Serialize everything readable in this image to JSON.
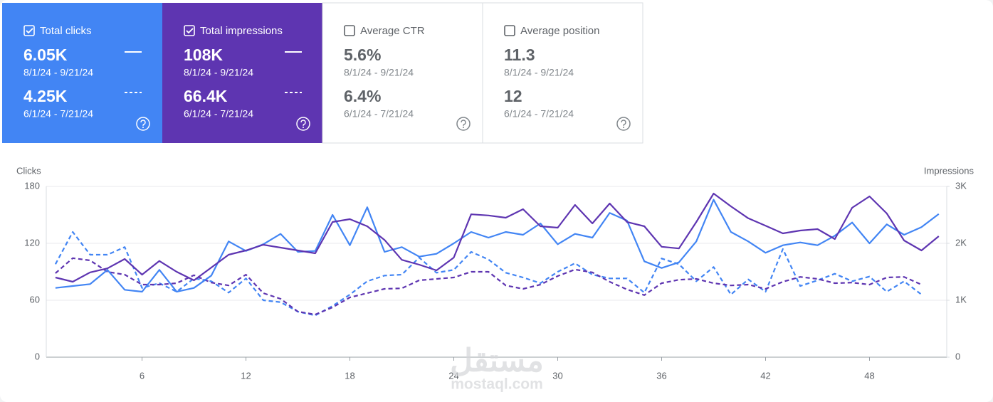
{
  "cards": [
    {
      "title": "Total clicks",
      "checked": true,
      "color": "#4285f4",
      "current": {
        "value": "6.05K",
        "range": "8/1/24 - 9/21/24"
      },
      "previous": {
        "value": "4.25K",
        "range": "6/1/24 - 7/21/24"
      }
    },
    {
      "title": "Total impressions",
      "checked": true,
      "color": "#5e35b1",
      "current": {
        "value": "108K",
        "range": "8/1/24 - 9/21/24"
      },
      "previous": {
        "value": "66.4K",
        "range": "6/1/24 - 7/21/24"
      }
    },
    {
      "title": "Average CTR",
      "checked": false,
      "color": "#ffffff",
      "current": {
        "value": "5.6%",
        "range": "8/1/24 - 9/21/24"
      },
      "previous": {
        "value": "6.4%",
        "range": "6/1/24 - 7/21/24"
      }
    },
    {
      "title": "Average position",
      "checked": false,
      "color": "#ffffff",
      "current": {
        "value": "11.3",
        "range": "8/1/24 - 9/21/24"
      },
      "previous": {
        "value": "12",
        "range": "6/1/24 - 7/21/24"
      }
    }
  ],
  "watermark": [
    "مستقل",
    "mostaql.com"
  ],
  "chart_data": {
    "type": "line",
    "y_label": "Clicks",
    "y2_label": "Impressions",
    "x": [
      1,
      2,
      3,
      4,
      5,
      6,
      7,
      8,
      9,
      10,
      11,
      12,
      13,
      14,
      15,
      16,
      17,
      18,
      19,
      20,
      21,
      22,
      23,
      24,
      25,
      26,
      27,
      28,
      29,
      30,
      31,
      32,
      33,
      34,
      35,
      36,
      37,
      38,
      39,
      40,
      41,
      42,
      43,
      44,
      45,
      46,
      47,
      48,
      49,
      50,
      51,
      52
    ],
    "xlim": [
      0.47,
      52.46
    ],
    "xticks": [
      6,
      12,
      18,
      24,
      30,
      36,
      42,
      48
    ],
    "ylim": [
      0,
      180
    ],
    "yticks": [
      0,
      60,
      120,
      180
    ],
    "y2lim": [
      0,
      3000
    ],
    "y2ticks": [
      0,
      {
        "value": 1000,
        "label": "1K"
      },
      {
        "value": 2000,
        "label": "2K"
      },
      {
        "value": 3000,
        "label": "3K"
      }
    ],
    "grid": true,
    "series": [
      {
        "color": "#4285f4",
        "dashed": false,
        "axis": "y",
        "values": [
          73,
          75,
          77,
          92,
          71,
          69,
          92,
          69,
          73,
          86,
          122,
          112,
          119,
          130,
          111,
          112,
          150,
          118,
          158,
          111,
          116,
          106,
          109,
          120,
          132,
          126,
          132,
          129,
          141,
          119,
          130,
          126,
          152,
          144,
          101,
          94,
          100,
          122,
          166,
          132,
          122,
          110,
          118,
          121,
          118,
          128,
          142,
          120,
          140,
          129,
          137,
          151
        ]
      },
      {
        "color": "#5e35b1",
        "dashed": false,
        "axis": "y2",
        "values": [
          1400,
          1325,
          1490,
          1560,
          1725,
          1450,
          1690,
          1500,
          1350,
          1575,
          1800,
          1875,
          1975,
          1925,
          1875,
          1825,
          2375,
          2425,
          2300,
          2060,
          1710,
          1625,
          1525,
          1750,
          2510,
          2490,
          2450,
          2600,
          2300,
          2275,
          2675,
          2350,
          2700,
          2375,
          2300,
          1940,
          1910,
          2375,
          2875,
          2650,
          2440,
          2310,
          2175,
          2225,
          2250,
          2075,
          2625,
          2825,
          2525,
          2050,
          1875,
          2125
        ]
      },
      {
        "color": "#4285f4",
        "dashed": true,
        "axis": "y",
        "values": [
          98,
          132,
          108,
          108,
          116,
          73,
          78,
          69,
          83,
          80,
          68,
          83,
          60,
          58,
          48,
          44,
          54,
          66,
          80,
          86,
          87,
          105,
          89,
          92,
          111,
          103,
          89,
          84,
          78,
          90,
          99,
          87,
          83,
          83,
          68,
          104,
          98,
          80,
          95,
          66,
          82,
          69,
          114,
          75,
          81,
          88,
          80,
          85,
          69,
          80,
          66,
          null
        ]
      },
      {
        "color": "#5e35b1",
        "dashed": true,
        "axis": "y2",
        "values": [
          1475,
          1740,
          1700,
          1500,
          1450,
          1275,
          1275,
          1300,
          1440,
          1310,
          1260,
          1450,
          1125,
          1025,
          800,
          750,
          875,
          1050,
          1125,
          1200,
          1210,
          1350,
          1375,
          1400,
          1500,
          1500,
          1260,
          1200,
          1275,
          1425,
          1540,
          1490,
          1325,
          1190,
          1090,
          1300,
          1360,
          1375,
          1300,
          1260,
          1275,
          1200,
          1325,
          1410,
          1375,
          1300,
          1310,
          1275,
          1400,
          1410,
          1275,
          null
        ]
      }
    ]
  }
}
